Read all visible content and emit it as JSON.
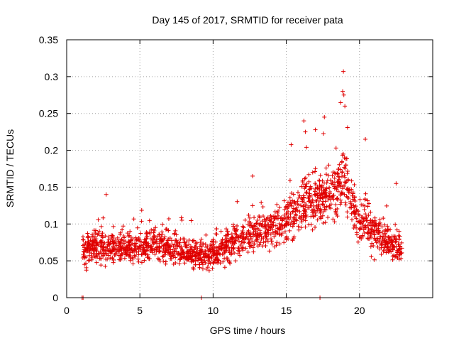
{
  "chart_data": {
    "type": "scatter",
    "title": "Day 145 of 2017, SRMTID for receiver pata",
    "xlabel": "GPS time / hours",
    "ylabel": "SRMTID / TECUs",
    "xlim": [
      0,
      25
    ],
    "ylim": [
      0,
      0.35
    ],
    "x_ticks": [
      0,
      5,
      10,
      15,
      20
    ],
    "x_tick_labels": [
      "0",
      "5",
      "10",
      "15",
      "20"
    ],
    "y_ticks": [
      0,
      0.05,
      0.1,
      0.15,
      0.2,
      0.25,
      0.3,
      0.35
    ],
    "y_tick_labels": [
      "0",
      "0.05",
      "0.1",
      "0.15",
      "0.2",
      "0.25",
      "0.3",
      "0.35"
    ],
    "grid": true,
    "marker": "+",
    "color": "#e00000",
    "series": [
      {
        "name": "SRMTID",
        "trend": [
          [
            1.2,
            0.065
          ],
          [
            2,
            0.07
          ],
          [
            3,
            0.068
          ],
          [
            4,
            0.066
          ],
          [
            5,
            0.07
          ],
          [
            6,
            0.075
          ],
          [
            7,
            0.07
          ],
          [
            8,
            0.063
          ],
          [
            9,
            0.058
          ],
          [
            10,
            0.06
          ],
          [
            11,
            0.07
          ],
          [
            12,
            0.08
          ],
          [
            13,
            0.088
          ],
          [
            14,
            0.095
          ],
          [
            15,
            0.105
          ],
          [
            16,
            0.125
          ],
          [
            17,
            0.135
          ],
          [
            18,
            0.14
          ],
          [
            18.5,
            0.155
          ],
          [
            19,
            0.165
          ],
          [
            19.5,
            0.12
          ],
          [
            20,
            0.1
          ],
          [
            20.5,
            0.105
          ],
          [
            21,
            0.09
          ],
          [
            22,
            0.075
          ],
          [
            22.8,
            0.065
          ]
        ],
        "spread_note": "approx. 1900 scattered observations between 1.1 h and 22.9 h",
        "outliers": [
          [
            1.05,
            0.0
          ],
          [
            1.12,
            0.0
          ],
          [
            9.2,
            0.0
          ],
          [
            17.3,
            0.0
          ],
          [
            18.9,
            0.307
          ],
          [
            18.85,
            0.28
          ],
          [
            19.0,
            0.26
          ],
          [
            16.3,
            0.225
          ],
          [
            16.2,
            0.24
          ],
          [
            17.6,
            0.245
          ],
          [
            20.4,
            0.215
          ],
          [
            22.5,
            0.155
          ],
          [
            2.7,
            0.14
          ],
          [
            12.7,
            0.165
          ],
          [
            16.8,
            0.17
          ],
          [
            17.9,
            0.18
          ]
        ]
      }
    ]
  }
}
